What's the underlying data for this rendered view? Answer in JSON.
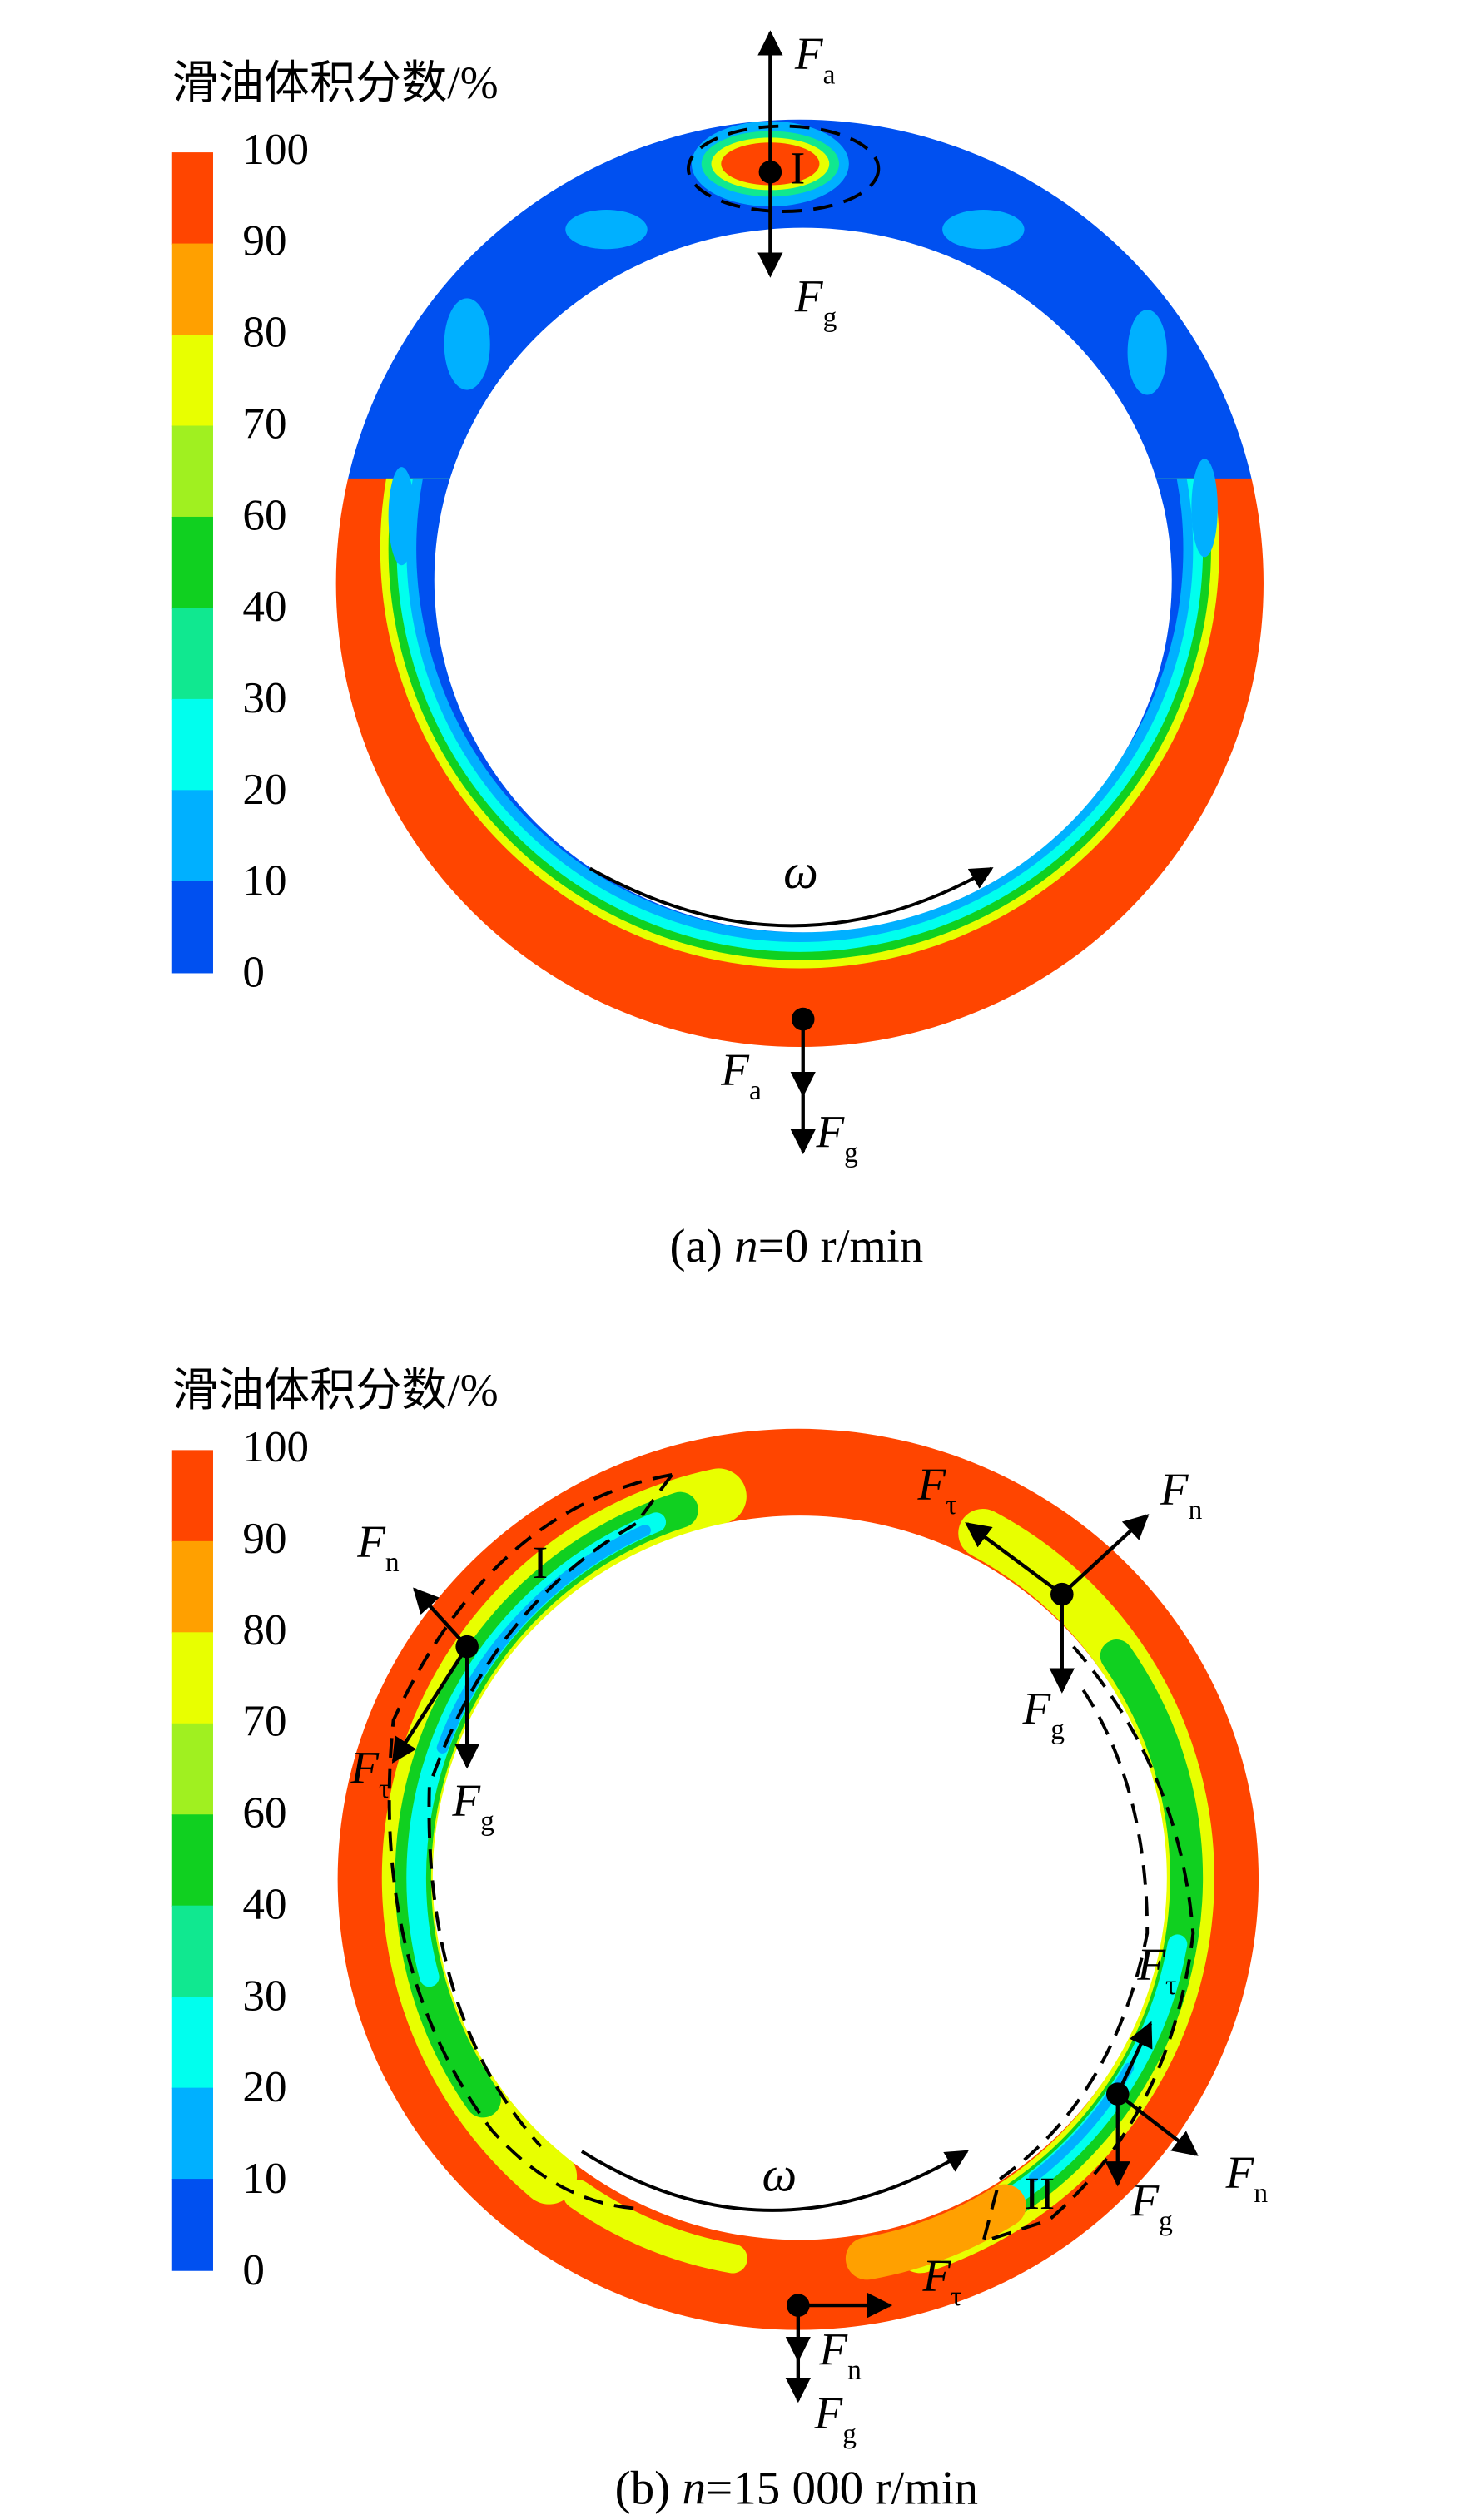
{
  "panels": [
    {
      "legend_title": "滑油体积分数/%",
      "legend_labels": [
        "100",
        "90",
        "80",
        "70",
        "60",
        "40",
        "30",
        "20",
        "10",
        "0"
      ],
      "legend_colors": [
        "#ff4500",
        "#ffa000",
        "#e8ff00",
        "#a0f020",
        "#10d020",
        "#10e890",
        "#00ffee",
        "#00b0ff",
        "#0050f0"
      ],
      "forces": [
        {
          "main": "F",
          "sub": "a"
        },
        {
          "main": "F",
          "sub": "g"
        },
        {
          "main": "F",
          "sub": "a"
        },
        {
          "main": "F",
          "sub": "g"
        }
      ],
      "regions": [
        "I"
      ],
      "omega": "ω",
      "caption": {
        "prefix": "(a) ",
        "var": "n",
        "rest": "=0 r/min"
      }
    },
    {
      "legend_title": "滑油体积分数/%",
      "legend_labels": [
        "100",
        "90",
        "80",
        "70",
        "60",
        "40",
        "30",
        "20",
        "10",
        "0"
      ],
      "legend_colors": [
        "#ff4500",
        "#ffa000",
        "#e8ff00",
        "#a0f020",
        "#10d020",
        "#10e890",
        "#00ffee",
        "#00b0ff",
        "#0050f0"
      ],
      "forces": [
        {
          "main": "F",
          "sub": "τ"
        },
        {
          "main": "F",
          "sub": "n"
        },
        {
          "main": "F",
          "sub": "n"
        },
        {
          "main": "F",
          "sub": "τ"
        },
        {
          "main": "F",
          "sub": "g"
        },
        {
          "main": "F",
          "sub": "g"
        },
        {
          "main": "F",
          "sub": "τ"
        },
        {
          "main": "F",
          "sub": "n"
        },
        {
          "main": "F",
          "sub": "g"
        },
        {
          "main": "F",
          "sub": "τ"
        },
        {
          "main": "F",
          "sub": "n"
        },
        {
          "main": "F",
          "sub": "g"
        }
      ],
      "regions": [
        "I",
        "II"
      ],
      "omega": "ω",
      "caption": {
        "prefix": "(b) ",
        "var": "n",
        "rest": "=15 000 r/min"
      }
    }
  ]
}
